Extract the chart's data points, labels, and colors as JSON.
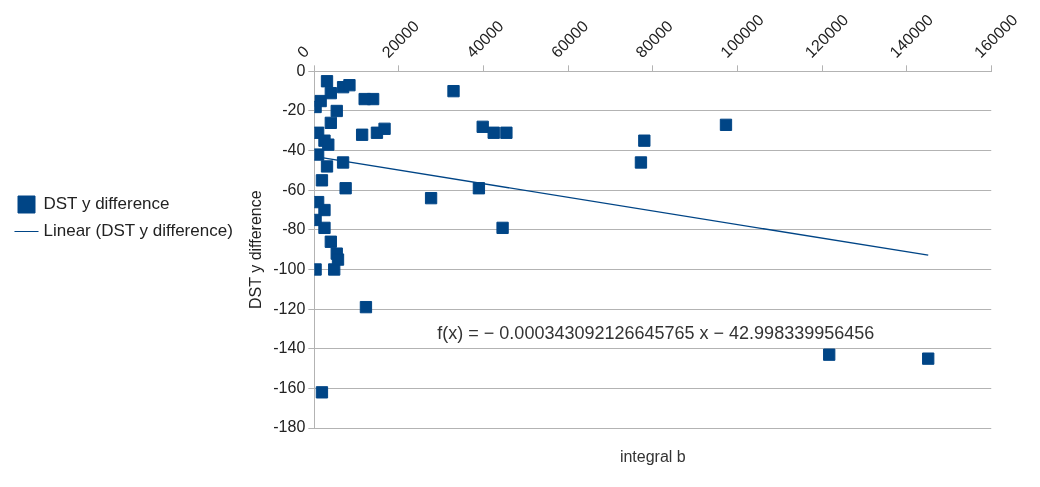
{
  "chart_data": {
    "type": "scatter",
    "xlabel": "integral b",
    "ylabel": "DST y difference",
    "series": [
      {
        "name": "DST y difference",
        "type": "scatter",
        "color": "#004586",
        "marker": "square",
        "x": [
          3000,
          6800,
          1500,
          5300,
          900,
          2400,
          3900,
          900,
          3000,
          6800,
          7400,
          1800,
          900,
          2400,
          300,
          2400,
          3900,
          5300,
          300,
          4700,
          5600,
          3300,
          300,
          3900,
          8300,
          11300,
          14800,
          16600,
          13900,
          11900,
          32900,
          39800,
          42400,
          45400,
          27600,
          38900,
          44500,
          77200,
          78000,
          97300,
          121700,
          145100,
          12200,
          1800
        ],
        "values": [
          -5,
          -8,
          -15,
          -20,
          -31,
          -35,
          -26,
          -42,
          -48,
          -46,
          -59,
          -55,
          -66,
          -70,
          -75,
          -79,
          -86,
          -92,
          -100,
          -100,
          -95,
          -37,
          -18,
          -11,
          -7,
          -32,
          -31,
          -29,
          -14,
          -14,
          -10,
          -28,
          -31,
          -31,
          -64,
          -59,
          -79,
          -46,
          -35,
          -27,
          -143,
          -145,
          -119,
          -162
        ]
      },
      {
        "name": "Linear (DST y difference)",
        "type": "line",
        "color": "#004586",
        "marker": "none",
        "line_style": "solid",
        "x": [
          300,
          145100
        ],
        "values": [
          -43.1,
          -92.8
        ]
      }
    ],
    "xlim": [
      0,
      160000
    ],
    "xticks": [
      0,
      20000,
      40000,
      60000,
      80000,
      100000,
      120000,
      140000,
      160000
    ],
    "ylim": [
      -180,
      0
    ],
    "yticks": [
      0,
      -20,
      -40,
      -60,
      -80,
      -100,
      -120,
      -140,
      -160,
      -180
    ],
    "grid": "y",
    "legend": "left",
    "annotations": [
      "f(x) = − 0.000343092126645765 x − 42.998339956456"
    ]
  }
}
